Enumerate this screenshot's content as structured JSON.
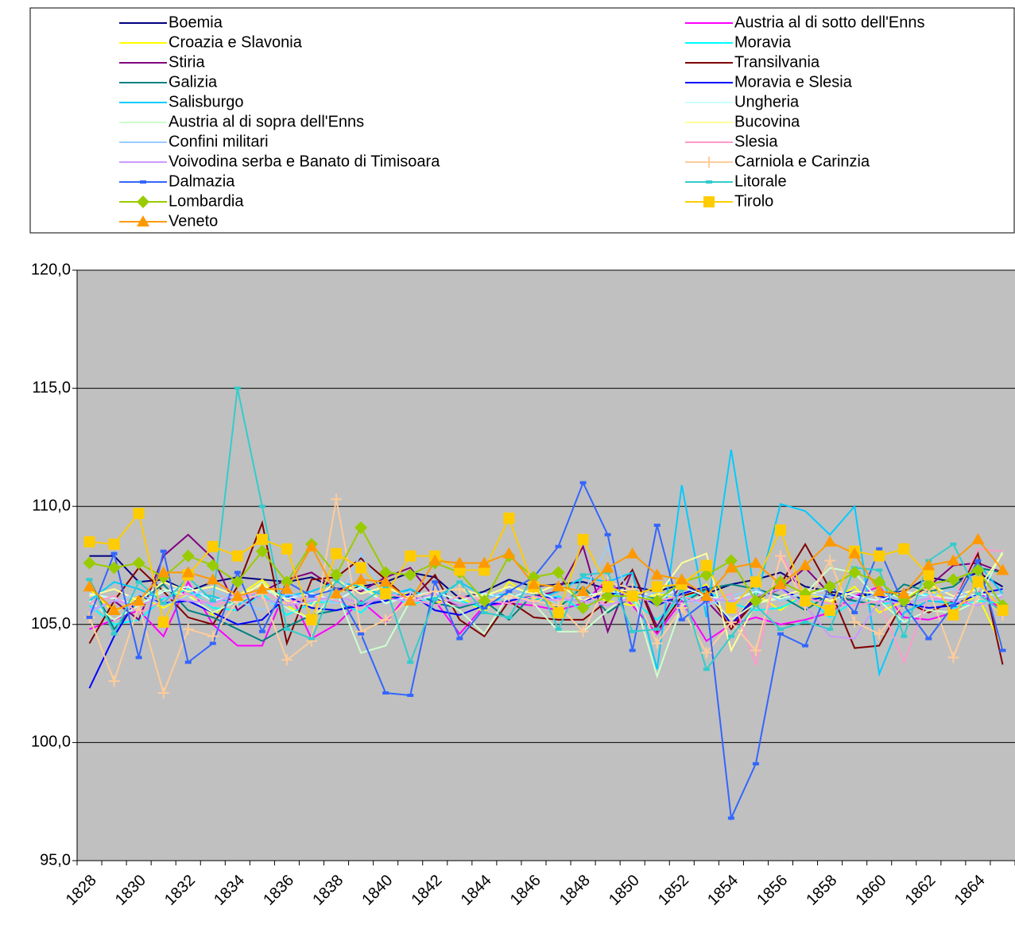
{
  "chart_data": {
    "type": "line",
    "categories": [
      "1828",
      null,
      "1830",
      null,
      "1832",
      null,
      "1834",
      null,
      "1836",
      null,
      "1838",
      null,
      "1840",
      null,
      "1842",
      null,
      "1844",
      null,
      "1846",
      null,
      "1848",
      null,
      "1850",
      null,
      "1852",
      null,
      "1854",
      null,
      "1856",
      null,
      "1858",
      null,
      "1860",
      null,
      "1862",
      null,
      "1864",
      null
    ],
    "ylim": [
      95,
      120
    ],
    "yticks": [
      {
        "value": 95,
        "label": "95,0"
      },
      {
        "value": 100,
        "label": "100,0"
      },
      {
        "value": 105,
        "label": "105,0"
      },
      {
        "value": 110,
        "label": "110,0"
      },
      {
        "value": 115,
        "label": "115,0"
      },
      {
        "value": 120,
        "label": "120,0"
      }
    ],
    "grid": true,
    "legend": "top",
    "series": [
      {
        "name": "Boemia",
        "color": "#000080",
        "values": [
          107.9,
          107.9,
          106.8,
          106.9,
          106.4,
          106.8,
          107.0,
          106.9,
          106.8,
          107.0,
          106.5,
          106.6,
          106.8,
          107.2,
          107.0,
          106.1,
          106.4,
          106.9,
          106.6,
          106.7,
          106.8,
          106.5,
          106.6,
          106.4,
          106.7,
          106.3,
          106.7,
          106.9,
          107.2,
          106.6,
          106.4,
          106.2,
          106.3,
          106.4,
          107.0,
          106.8,
          107.2,
          106.6
        ]
      },
      {
        "name": "Austria al di sotto dell'Enns",
        "color": "#ff00ff",
        "values": [
          104.8,
          105.2,
          105.6,
          104.5,
          106.8,
          105.0,
          104.1,
          104.1,
          106.6,
          104.4,
          105.0,
          106.0,
          105.1,
          106.4,
          106.0,
          104.6,
          105.8,
          105.9,
          105.8,
          105.6,
          105.9,
          106.9,
          105.8,
          104.6,
          106.0,
          104.3,
          105.0,
          105.3,
          105.0,
          105.2,
          105.5,
          106.2,
          106.6,
          105.3,
          105.2,
          105.5,
          106.4,
          105.6
        ]
      },
      {
        "name": "Croazia e Slavonia",
        "color": "#ffff00",
        "values": [
          106.5,
          105.5,
          106.2,
          105.7,
          106.3,
          105.4,
          106.2,
          106.9,
          105.8,
          105.2,
          106.3,
          106.7,
          105.9,
          106.4,
          105.9,
          106.2,
          105.5,
          106.8,
          106.1,
          105.9,
          106.3,
          106.0,
          105.8,
          106.3,
          106.1,
          106.7,
          105.0,
          106.3,
          105.6,
          106.4,
          105.9,
          106.6,
          105.5,
          106.0,
          106.5,
          105.8,
          106.2,
          104.0
        ]
      },
      {
        "name": "Moravia",
        "color": "#00ffff",
        "values": [
          105.8,
          105.0,
          105.2,
          106.1,
          106.5,
          105.7,
          105.6,
          106.3,
          105.4,
          105.9,
          106.0,
          105.5,
          106.4,
          105.8,
          106.2,
          106.0,
          105.7,
          106.3,
          105.9,
          106.2,
          105.6,
          106.4,
          106.0,
          105.2,
          106.1,
          106.4,
          105.9,
          105.6,
          105.7,
          106.2,
          105.3,
          106.0,
          105.8,
          106.1,
          106.3,
          105.7,
          106.0,
          105.9
        ]
      },
      {
        "name": "Stiria",
        "color": "#800080",
        "values": [
          105.5,
          106.0,
          105.2,
          107.9,
          108.8,
          107.8,
          105.6,
          106.4,
          106.9,
          107.2,
          106.5,
          106.4,
          107.0,
          107.4,
          106.1,
          105.8,
          106.0,
          106.5,
          106.2,
          106.4,
          108.3,
          104.7,
          107.3,
          104.9,
          106.8,
          106.0,
          104.9,
          106.1,
          106.5,
          107.4,
          106.3,
          105.9,
          106.4,
          106.0,
          106.6,
          107.5,
          107.6,
          107.2
        ]
      },
      {
        "name": "Transilvania",
        "color": "#800000",
        "values": [
          104.2,
          106.0,
          107.4,
          106.4,
          105.3,
          105.0,
          106.6,
          109.3,
          104.2,
          106.9,
          107.0,
          107.8,
          106.9,
          106.0,
          107.1,
          105.2,
          104.5,
          106.0,
          105.3,
          105.2,
          105.2,
          106.0,
          107.3,
          104.7,
          106.2,
          106.5,
          104.8,
          106.0,
          106.7,
          108.4,
          106.5,
          104.0,
          104.1,
          106.0,
          105.5,
          106.0,
          108.0,
          103.3
        ]
      },
      {
        "name": "Galizia",
        "color": "#008080",
        "values": [
          106.9,
          104.8,
          106.0,
          106.7,
          105.6,
          105.3,
          104.8,
          104.3,
          104.9,
          105.4,
          105.6,
          105.9,
          106.0,
          106.5,
          105.9,
          105.7,
          106.0,
          105.2,
          106.3,
          105.7,
          106.6,
          105.5,
          106.2,
          106.1,
          105.9,
          106.5,
          106.7,
          106.5,
          106.2,
          105.6,
          106.3,
          106.0,
          105.8,
          106.7,
          106.4,
          106.6,
          107.4,
          107.2
        ]
      },
      {
        "name": "Moravia e Slesia",
        "color": "#0000ff",
        "values": [
          102.3,
          104.5,
          106.2,
          105.9,
          106.0,
          105.5,
          105.0,
          105.2,
          106.2,
          105.7,
          105.6,
          105.8,
          106.0,
          106.3,
          105.6,
          105.4,
          105.8,
          106.0,
          106.2,
          106.1,
          106.0,
          106.3,
          106.4,
          105.8,
          106.3,
          106.6,
          105.0,
          106.2,
          106.5,
          106.0,
          106.2,
          106.4,
          106.2,
          105.9,
          105.7,
          105.8,
          106.3,
          106.5
        ]
      },
      {
        "name": "Salisburgo",
        "color": "#00ccff",
        "values": [
          106.0,
          106.8,
          106.5,
          106.0,
          106.3,
          106.2,
          105.8,
          106.5,
          106.2,
          106.4,
          106.8,
          106.6,
          106.2,
          106.5,
          106.0,
          106.8,
          106.2,
          106.3,
          106.0,
          106.4,
          107.0,
          106.8,
          107.2,
          103.1,
          110.9,
          105.3,
          112.4,
          106.0,
          110.1,
          109.8,
          108.8,
          110.0,
          102.9,
          105.5,
          106.0,
          105.9,
          107.6,
          106.3
        ]
      },
      {
        "name": "Ungheria",
        "color": "#ccffff",
        "values": [
          106.3,
          106.1,
          105.8,
          106.4,
          106.6,
          106.0,
          106.2,
          106.5,
          106.1,
          106.3,
          106.0,
          106.6,
          105.9,
          106.2,
          106.4,
          106.0,
          106.3,
          106.1,
          106.5,
          106.0,
          106.2,
          106.4,
          106.3,
          106.0,
          106.6,
          106.2,
          106.0,
          106.4,
          106.1,
          106.3,
          106.5,
          106.2,
          106.0,
          106.4,
          106.2,
          106.1,
          106.3,
          106.2
        ]
      },
      {
        "name": "Austria al di sopra dell'Enns",
        "color": "#ccffcc",
        "values": [
          106.0,
          105.2,
          105.8,
          106.5,
          106.2,
          105.5,
          106.0,
          106.8,
          105.7,
          105.2,
          106.4,
          103.8,
          104.1,
          106.0,
          106.2,
          105.6,
          104.6,
          106.3,
          105.9,
          104.7,
          104.7,
          105.6,
          106.4,
          102.8,
          105.8,
          106.3,
          105.2,
          105.9,
          106.1,
          106.3,
          107.4,
          107.2,
          106.0,
          105.1,
          105.6,
          105.5,
          106.0,
          108.1
        ]
      },
      {
        "name": "Bucovina",
        "color": "#ffff99",
        "values": [
          106.2,
          106.5,
          106.0,
          106.8,
          106.4,
          106.6,
          106.2,
          106.7,
          106.0,
          105.8,
          106.9,
          106.3,
          106.6,
          106.1,
          106.4,
          106.5,
          106.2,
          106.6,
          106.3,
          106.7,
          106.0,
          106.5,
          106.4,
          106.2,
          107.6,
          108.0,
          103.9,
          105.9,
          106.2,
          106.5,
          106.0,
          106.4,
          106.3,
          106.1,
          106.7,
          106.2,
          106.5,
          108.0
        ]
      },
      {
        "name": "Confini militari",
        "color": "#99ccff",
        "values": [
          105.5,
          106.0,
          106.3,
          105.8,
          106.2,
          106.5,
          106.0,
          105.6,
          106.3,
          106.1,
          105.9,
          108.0,
          106.2,
          106.4,
          105.8,
          106.2,
          106.0,
          106.5,
          106.2,
          105.9,
          106.3,
          108.3,
          106.0,
          106.4,
          106.1,
          105.8,
          106.2,
          106.5,
          106.0,
          106.3,
          106.2,
          105.9,
          106.4,
          106.0,
          106.2,
          106.5,
          106.1,
          106.3
        ]
      },
      {
        "name": "Slesia",
        "color": "#ff99cc",
        "values": [
          105.9,
          106.2,
          105.5,
          106.0,
          106.3,
          105.8,
          106.1,
          106.4,
          105.9,
          106.2,
          106.0,
          105.7,
          106.3,
          106.1,
          105.8,
          106.2,
          106.0,
          105.9,
          106.2,
          106.0,
          106.3,
          105.8,
          106.1,
          106.0,
          106.2,
          105.9,
          106.3,
          103.3,
          108.0,
          106.1,
          105.9,
          105.8,
          106.0,
          103.4,
          106.2,
          106.0,
          108.2,
          108.1
        ]
      },
      {
        "name": "Voivodina serba e Banato di Timisoara",
        "color": "#cc99ff",
        "values": [
          105.6,
          106.0,
          105.8,
          106.2,
          106.0,
          105.9,
          106.3,
          106.1,
          105.8,
          106.0,
          106.2,
          105.9,
          106.1,
          106.0,
          106.3,
          105.8,
          106.0,
          106.2,
          105.9,
          106.1,
          106.0,
          105.8,
          106.2,
          106.0,
          105.9,
          106.1,
          106.0,
          106.2,
          106.5,
          105.8,
          104.5,
          104.4,
          106.0,
          105.9,
          106.1,
          106.0,
          105.8,
          106.2
        ]
      },
      {
        "name": "Carniola e Carinzia",
        "color": "#ffcc99",
        "marker": "plus",
        "values": [
          105.3,
          102.6,
          105.8,
          102.1,
          104.8,
          104.5,
          106.0,
          106.3,
          103.5,
          104.3,
          110.3,
          104.7,
          105.2,
          106.1,
          106.4,
          106.5,
          106.0,
          106.2,
          106.0,
          105.8,
          104.7,
          106.8,
          106.5,
          104.2,
          105.7,
          103.8,
          105.1,
          103.9,
          107.9,
          105.8,
          107.7,
          105.1,
          104.6,
          105.9,
          106.5,
          103.6,
          106.3,
          105.4
        ]
      },
      {
        "name": "Dalmazia",
        "color": "#3366ff",
        "marker": "dash",
        "values": [
          105.3,
          108.0,
          103.6,
          108.1,
          103.4,
          104.2,
          107.2,
          104.7,
          106.8,
          106.2,
          106.5,
          104.6,
          102.1,
          102.0,
          106.8,
          104.4,
          105.7,
          106.4,
          107.0,
          108.3,
          111.0,
          108.8,
          103.9,
          109.2,
          105.2,
          106.0,
          96.8,
          99.1,
          104.6,
          104.1,
          106.7,
          105.5,
          108.2,
          105.8,
          104.4,
          105.8,
          107.7,
          103.9
        ]
      },
      {
        "name": "Litorale",
        "color": "#33cccc",
        "marker": "dash",
        "values": [
          106.9,
          104.6,
          106.8,
          105.9,
          107.0,
          106.0,
          115.0,
          110.0,
          104.8,
          104.4,
          106.9,
          105.9,
          106.6,
          103.4,
          106.1,
          106.8,
          105.5,
          105.3,
          107.1,
          104.8,
          107.1,
          107.2,
          104.7,
          104.8,
          106.5,
          103.1,
          104.5,
          105.8,
          104.8,
          105.1,
          104.8,
          107.4,
          107.3,
          104.5,
          107.7,
          108.4,
          106.3,
          105.5
        ]
      },
      {
        "name": "Lombardia",
        "color": "#99cc00",
        "marker": "diamond",
        "values": [
          107.6,
          107.4,
          107.6,
          107.0,
          107.9,
          107.5,
          106.8,
          108.1,
          106.8,
          108.4,
          107.1,
          109.1,
          107.2,
          107.1,
          107.6,
          107.2,
          106.0,
          107.9,
          107.0,
          107.2,
          105.7,
          106.2,
          106.2,
          106.0,
          106.8,
          107.1,
          107.7,
          106.0,
          106.8,
          106.3,
          106.6,
          107.2,
          106.8,
          106.0,
          106.7,
          106.9,
          107.3,
          105.8
        ]
      },
      {
        "name": "Tirolo",
        "color": "#ffcc00",
        "marker": "square",
        "values": [
          108.5,
          108.4,
          109.7,
          105.1,
          107.1,
          108.3,
          107.9,
          108.6,
          108.2,
          105.2,
          108.0,
          107.4,
          106.3,
          107.9,
          107.9,
          107.3,
          107.3,
          109.5,
          106.6,
          105.5,
          108.6,
          106.6,
          106.2,
          106.6,
          106.7,
          107.5,
          105.7,
          106.8,
          109.0,
          106.0,
          105.6,
          108.1,
          107.9,
          108.2,
          107.1,
          105.4,
          106.8,
          105.6
        ]
      },
      {
        "name": "Veneto",
        "color": "#ff9900",
        "marker": "triangle",
        "values": [
          106.6,
          105.6,
          106.0,
          107.2,
          107.2,
          106.9,
          106.2,
          106.5,
          106.5,
          108.3,
          106.3,
          106.9,
          106.8,
          106.0,
          107.7,
          107.6,
          107.6,
          108.0,
          106.7,
          106.6,
          106.4,
          107.4,
          108.0,
          107.1,
          106.9,
          106.2,
          107.4,
          107.6,
          106.7,
          107.5,
          108.5,
          108.0,
          106.4,
          106.3,
          107.5,
          107.7,
          108.6,
          107.3
        ]
      }
    ]
  }
}
